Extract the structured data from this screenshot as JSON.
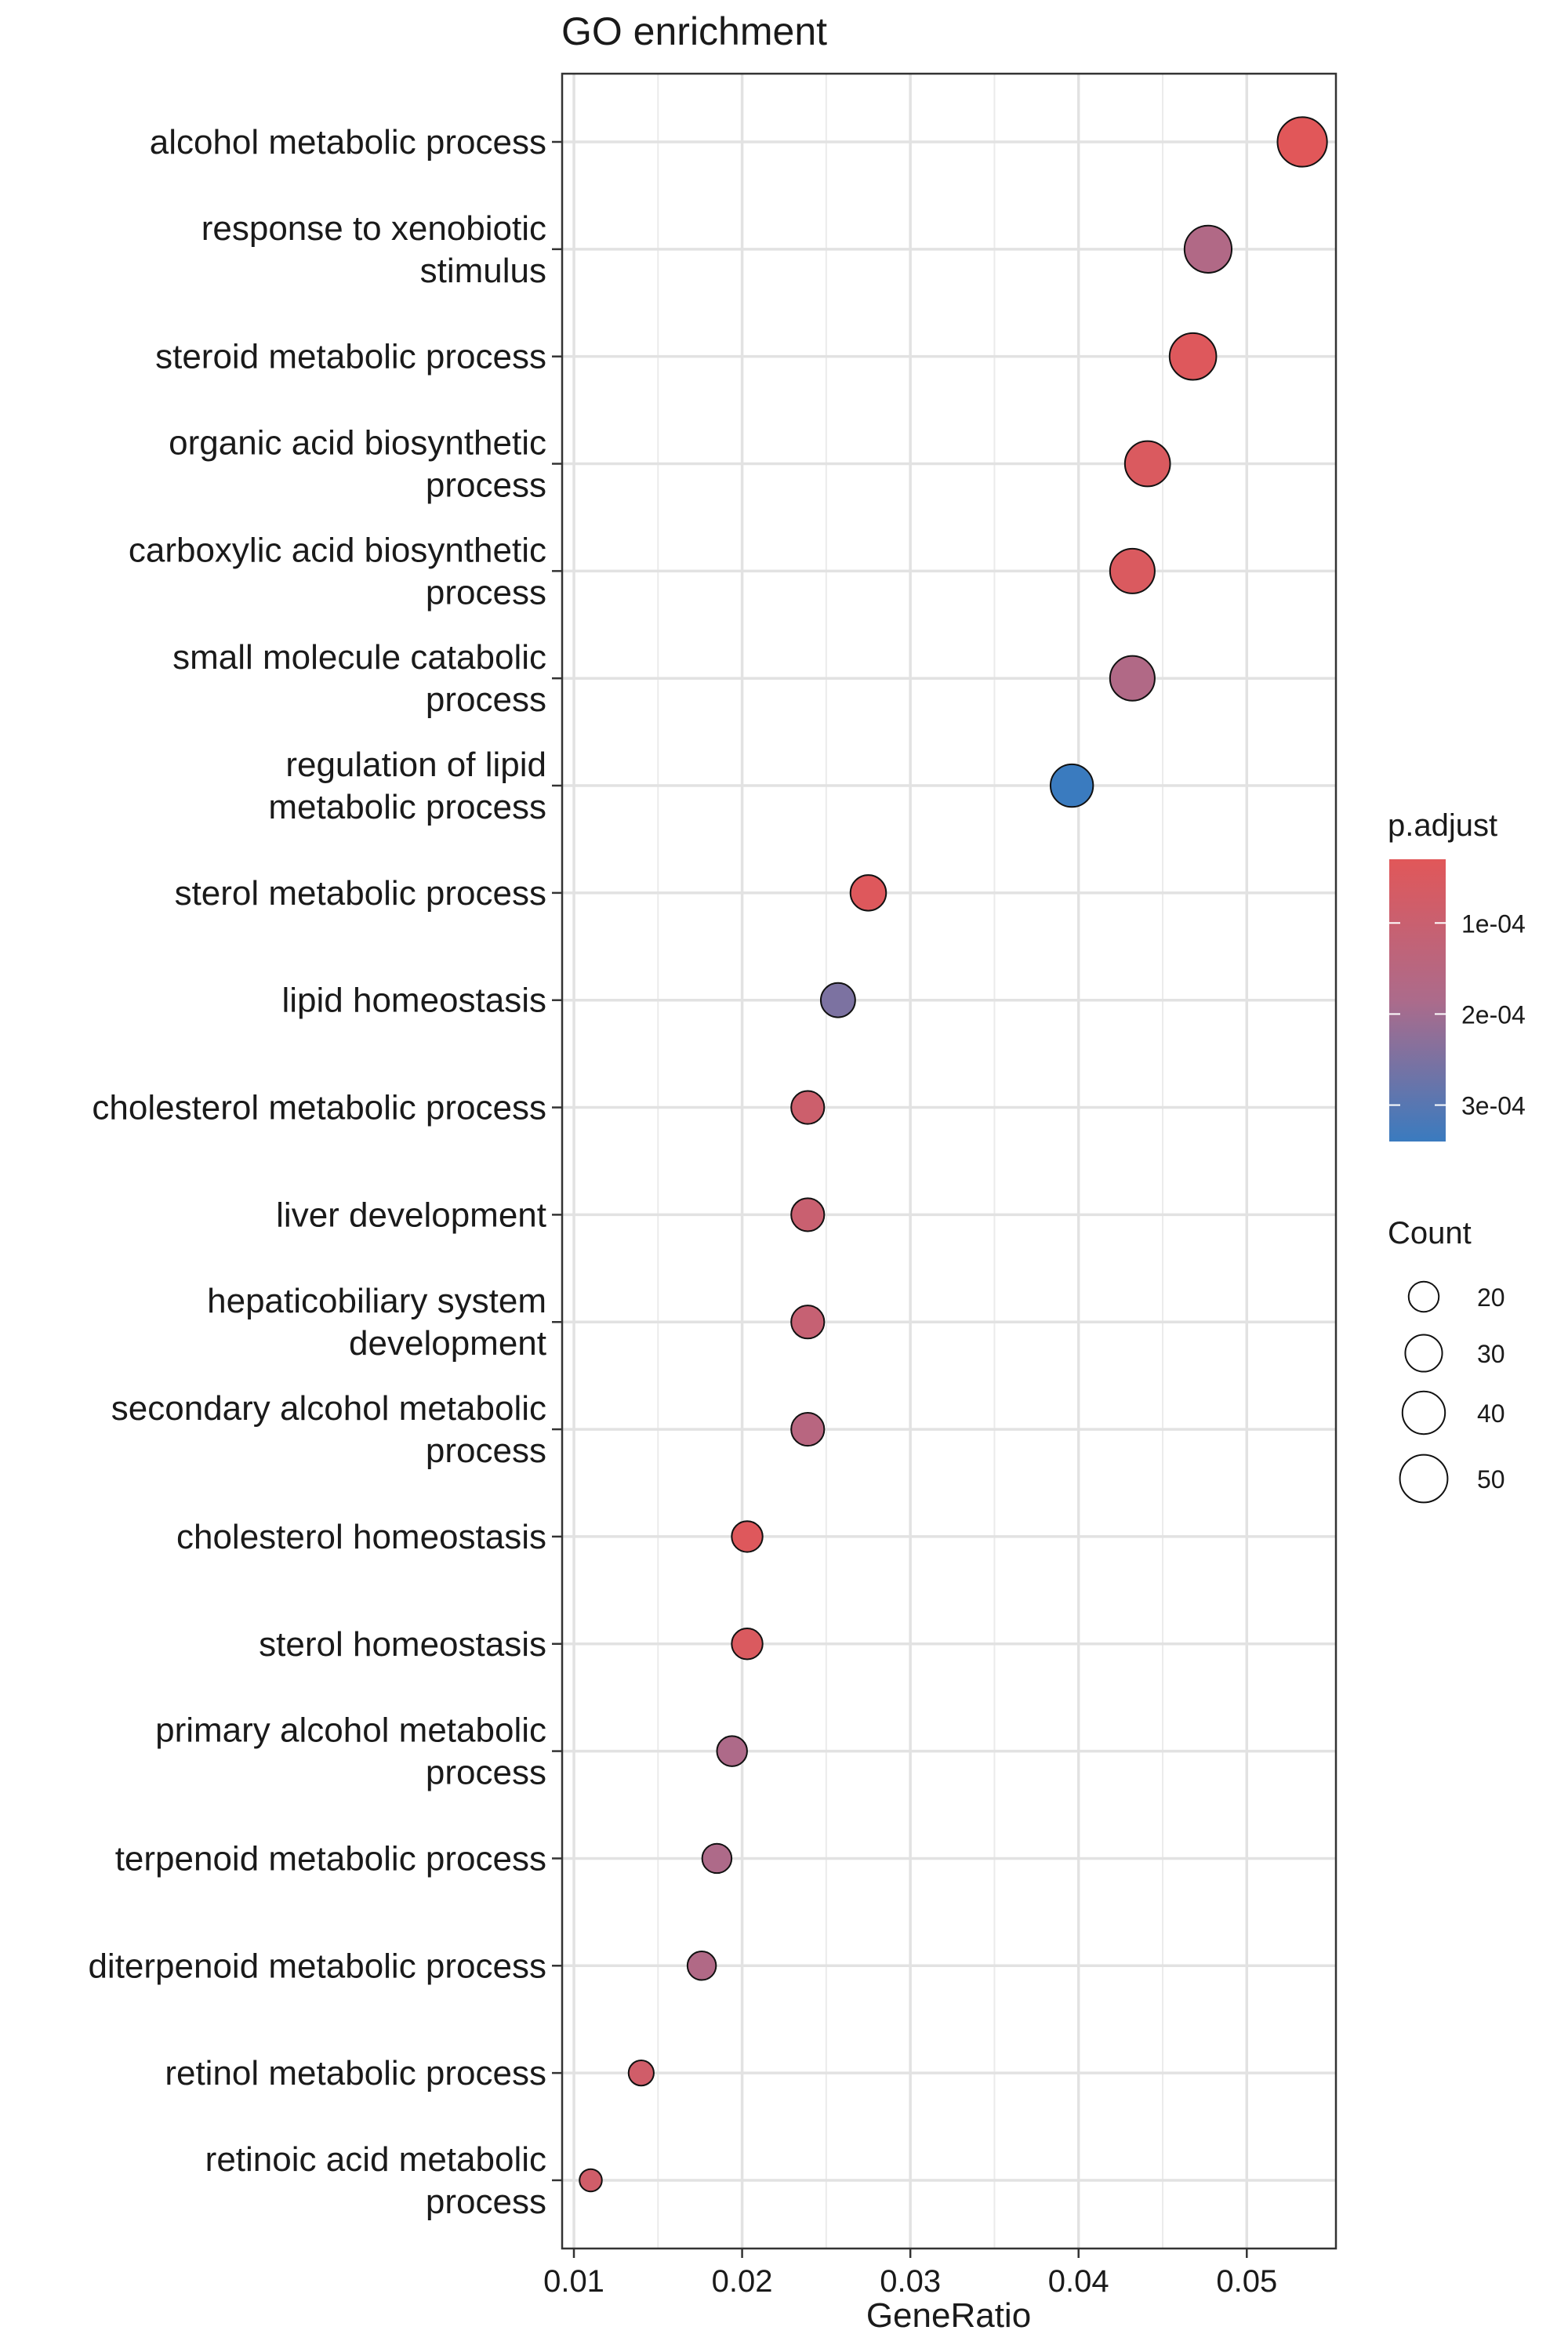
{
  "chart_data": {
    "type": "scatter",
    "title": "GO enrichment",
    "xlabel": "GeneRatio",
    "ylabel": "",
    "xlim": [
      0.0093,
      0.0553
    ],
    "x_ticks": [
      0.01,
      0.02,
      0.03,
      0.04,
      0.05
    ],
    "x_tick_labels": [
      "0.01",
      "0.02",
      "0.03",
      "0.04",
      "0.05"
    ],
    "grid": true,
    "categories": [
      [
        "alcohol metabolic process"
      ],
      [
        "response to xenobiotic",
        "stimulus"
      ],
      [
        "steroid metabolic process"
      ],
      [
        "organic acid biosynthetic",
        "process"
      ],
      [
        "carboxylic acid biosynthetic",
        "process"
      ],
      [
        "small molecule catabolic",
        "process"
      ],
      [
        "regulation of lipid",
        "metabolic process"
      ],
      [
        "sterol metabolic process"
      ],
      [
        "lipid homeostasis"
      ],
      [
        "cholesterol metabolic process"
      ],
      [
        "liver development"
      ],
      [
        "hepaticobiliary system",
        "development"
      ],
      [
        "secondary alcohol metabolic",
        "process"
      ],
      [
        "cholesterol homeostasis"
      ],
      [
        "sterol homeostasis"
      ],
      [
        "primary alcohol metabolic",
        "process"
      ],
      [
        "terpenoid metabolic process"
      ],
      [
        "diterpenoid metabolic process"
      ],
      [
        "retinol metabolic process"
      ],
      [
        "retinoic acid metabolic",
        "process"
      ]
    ],
    "points": [
      {
        "gene_ratio": 0.0533,
        "count": 54,
        "p_adjust": 3e-05
      },
      {
        "gene_ratio": 0.0477,
        "count": 49,
        "p_adjust": 0.00017
      },
      {
        "gene_ratio": 0.0468,
        "count": 48,
        "p_adjust": 4e-05
      },
      {
        "gene_ratio": 0.0441,
        "count": 45,
        "p_adjust": 5e-05
      },
      {
        "gene_ratio": 0.0432,
        "count": 44,
        "p_adjust": 5e-05
      },
      {
        "gene_ratio": 0.0432,
        "count": 44,
        "p_adjust": 0.00017
      },
      {
        "gene_ratio": 0.0396,
        "count": 40,
        "p_adjust": 0.00034
      },
      {
        "gene_ratio": 0.0275,
        "count": 28,
        "p_adjust": 4e-05
      },
      {
        "gene_ratio": 0.0257,
        "count": 26,
        "p_adjust": 0.00025
      },
      {
        "gene_ratio": 0.0239,
        "count": 24,
        "p_adjust": 9e-05
      },
      {
        "gene_ratio": 0.0239,
        "count": 24,
        "p_adjust": 0.0001
      },
      {
        "gene_ratio": 0.0239,
        "count": 24,
        "p_adjust": 0.00011
      },
      {
        "gene_ratio": 0.0239,
        "count": 24,
        "p_adjust": 0.00015
      },
      {
        "gene_ratio": 0.0203,
        "count": 21,
        "p_adjust": 4e-05
      },
      {
        "gene_ratio": 0.0203,
        "count": 21,
        "p_adjust": 5e-05
      },
      {
        "gene_ratio": 0.0194,
        "count": 20,
        "p_adjust": 0.00018
      },
      {
        "gene_ratio": 0.0185,
        "count": 19,
        "p_adjust": 0.00018
      },
      {
        "gene_ratio": 0.0176,
        "count": 18,
        "p_adjust": 0.00017
      },
      {
        "gene_ratio": 0.014,
        "count": 14,
        "p_adjust": 8e-05
      },
      {
        "gene_ratio": 0.011,
        "count": 11,
        "p_adjust": 8e-05
      }
    ],
    "color_legend": {
      "title": "p.adjust",
      "low_color": "#E15759",
      "mid_color": "#AC6B8B",
      "high_color": "#3A7BBF",
      "range": [
        3e-05,
        0.00034
      ],
      "ticks": [
        0.0001,
        0.0002,
        0.0003
      ],
      "tick_labels": [
        "1e-04",
        "2e-04",
        "3e-04"
      ]
    },
    "size_legend": {
      "title": "Count",
      "values": [
        20,
        30,
        40,
        50
      ],
      "labels": [
        "20",
        "30",
        "40",
        "50"
      ]
    }
  }
}
